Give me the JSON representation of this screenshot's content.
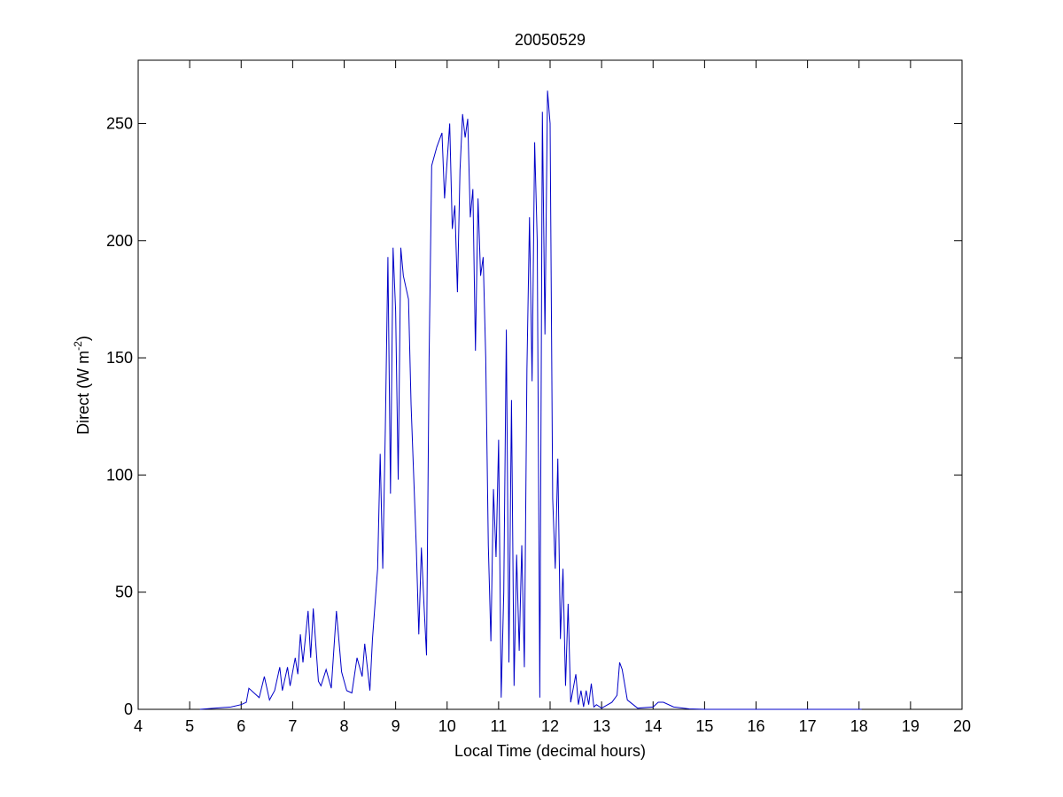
{
  "chart_data": {
    "type": "line",
    "title": "20050529",
    "x_label": "Local Time (decimal hours)",
    "y_label": {
      "text": "Direct (W m",
      "sup": "-2",
      "end": ")"
    },
    "color": "#0000c8",
    "x": [
      5.2,
      5.5,
      5.8,
      6.0,
      6.1,
      6.15,
      6.25,
      6.35,
      6.45,
      6.55,
      6.65,
      6.75,
      6.8,
      6.9,
      6.95,
      7.05,
      7.1,
      7.15,
      7.2,
      7.3,
      7.35,
      7.4,
      7.5,
      7.55,
      7.65,
      7.75,
      7.85,
      7.95,
      8.05,
      8.15,
      8.25,
      8.35,
      8.4,
      8.5,
      8.55,
      8.65,
      8.7,
      8.75,
      8.8,
      8.85,
      8.9,
      8.95,
      9.0,
      9.05,
      9.1,
      9.15,
      9.25,
      9.3,
      9.4,
      9.45,
      9.5,
      9.55,
      9.6,
      9.65,
      9.7,
      9.8,
      9.9,
      9.95,
      10.05,
      10.1,
      10.15,
      10.2,
      10.25,
      10.3,
      10.35,
      10.4,
      10.45,
      10.5,
      10.55,
      10.6,
      10.65,
      10.7,
      10.75,
      10.8,
      10.85,
      10.9,
      10.95,
      11.0,
      11.05,
      11.1,
      11.15,
      11.2,
      11.25,
      11.3,
      11.35,
      11.4,
      11.45,
      11.5,
      11.55,
      11.6,
      11.65,
      11.7,
      11.75,
      11.8,
      11.85,
      11.9,
      11.95,
      12.0,
      12.05,
      12.1,
      12.15,
      12.2,
      12.25,
      12.3,
      12.35,
      12.4,
      12.5,
      12.55,
      12.6,
      12.65,
      12.7,
      12.75,
      12.8,
      12.85,
      12.9,
      13.0,
      13.2,
      13.3,
      13.35,
      13.4,
      13.5,
      13.7,
      14.0,
      14.1,
      14.2,
      14.4,
      14.7,
      15.0,
      18.05
    ],
    "values": [
      0,
      0.5,
      1,
      2,
      3,
      9,
      7,
      5,
      14,
      4,
      8,
      18,
      8,
      18,
      10,
      22,
      15,
      32,
      20,
      42,
      22,
      43,
      12,
      10,
      17,
      9,
      42,
      16,
      8,
      7,
      22,
      14,
      28,
      8,
      30,
      60,
      109,
      60,
      120,
      193,
      92,
      197,
      170,
      98,
      197,
      185,
      175,
      130,
      70,
      32,
      69,
      45,
      23,
      150,
      232,
      240,
      246,
      218,
      250,
      205,
      215,
      178,
      230,
      254,
      244,
      252,
      210,
      222,
      153,
      218,
      185,
      193,
      150,
      70,
      29,
      94,
      65,
      115,
      5,
      50,
      162,
      20,
      132,
      10,
      66,
      25,
      70,
      18,
      145,
      210,
      140,
      242,
      200,
      5,
      255,
      160,
      264,
      250,
      90,
      60,
      107,
      30,
      60,
      10,
      45,
      3,
      15,
      2,
      8,
      1,
      8,
      2,
      11,
      1,
      2,
      0.5,
      3,
      6,
      20,
      17,
      4,
      0.5,
      1,
      3,
      3,
      1,
      0.2,
      0,
      0
    ],
    "xlim": [
      4,
      20
    ],
    "ylim": [
      0,
      277
    ],
    "xticks": [
      4,
      5,
      6,
      7,
      8,
      9,
      10,
      11,
      12,
      13,
      14,
      15,
      16,
      17,
      18,
      19,
      20
    ],
    "yticks": [
      0,
      50,
      100,
      150,
      200,
      250
    ]
  }
}
